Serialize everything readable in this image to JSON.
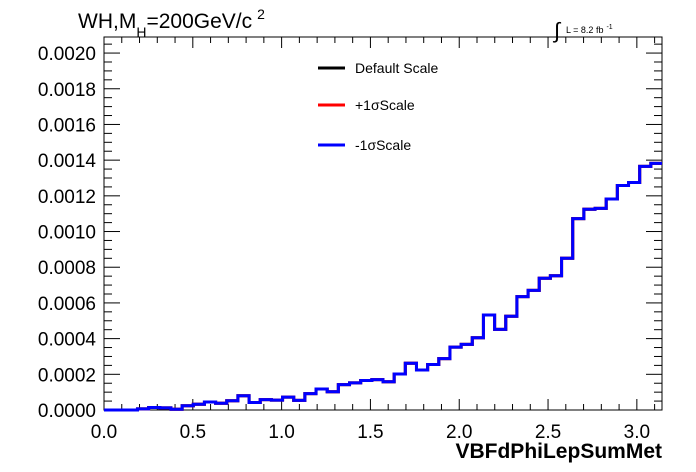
{
  "chart_data": {
    "type": "line",
    "title": "WH,M_H=200GeV/c^2",
    "title_parts": {
      "main": "WH,M",
      "subscript": "H",
      "rest": "=200GeV/c",
      "superscript": "2"
    },
    "annotation": {
      "integral_symbol": "∫",
      "text": "L = 8.2 fb",
      "superscript": "-1"
    },
    "xlabel": "VBFdPhiLepSumMet",
    "ylabel": "",
    "xlim": [
      0.0,
      3.1416
    ],
    "ylim": [
      0.0,
      0.00209
    ],
    "x_ticks": [
      "0.0",
      "0.5",
      "1.0",
      "1.5",
      "2.0",
      "2.5",
      "3.0"
    ],
    "y_ticks": [
      "0.0000",
      "0.0002",
      "0.0004",
      "0.0006",
      "0.0008",
      "0.0010",
      "0.0012",
      "0.0014",
      "0.0016",
      "0.0018",
      "0.0020"
    ],
    "grid": false,
    "legend_position": "top-center",
    "bin_edges": [
      0.0,
      0.0628,
      0.1257,
      0.1885,
      0.2513,
      0.3142,
      0.377,
      0.4398,
      0.5027,
      0.5655,
      0.6283,
      0.6912,
      0.754,
      0.8168,
      0.8796,
      0.9425,
      1.0053,
      1.0681,
      1.131,
      1.1938,
      1.2566,
      1.3195,
      1.3823,
      1.4451,
      1.508,
      1.5708,
      1.6336,
      1.6965,
      1.7593,
      1.8221,
      1.885,
      1.9478,
      2.0106,
      2.0735,
      2.1363,
      2.1991,
      2.2619,
      2.3248,
      2.3876,
      2.4504,
      2.5133,
      2.5761,
      2.6389,
      2.7018,
      2.7646,
      2.8274,
      2.8903,
      2.9531,
      3.0159,
      3.0788,
      3.1416
    ],
    "series": [
      {
        "name": "Default Scale",
        "color": "#000000",
        "values": [
          0.0,
          0.0,
          0.0,
          6e-06,
          1.4e-05,
          1.2e-05,
          4e-06,
          2.4e-05,
          3.2e-05,
          4.5e-05,
          3.8e-05,
          5.2e-05,
          8e-05,
          4.2e-05,
          5.8e-05,
          5.5e-05,
          7.2e-05,
          5.4e-05,
          9.2e-05,
          0.000118,
          0.000102,
          0.000142,
          0.000152,
          0.000165,
          0.00017,
          0.000158,
          0.000202,
          0.000262,
          0.000224,
          0.000255,
          0.000288,
          0.000352,
          0.000368,
          0.000405,
          0.000532,
          0.000452,
          0.000525,
          0.000635,
          0.00067,
          0.000738,
          0.000752,
          0.00085,
          0.001072,
          0.001125,
          0.00113,
          0.001182,
          0.001258,
          0.001275,
          0.001365,
          0.001382
        ]
      },
      {
        "name": "+1σScale",
        "color": "#ff0000",
        "values": [
          0.0,
          0.0,
          0.0,
          6e-06,
          1.4e-05,
          1.2e-05,
          4e-06,
          2.4e-05,
          3.2e-05,
          4.5e-05,
          3.8e-05,
          5.2e-05,
          8e-05,
          4.2e-05,
          5.8e-05,
          5.5e-05,
          7.2e-05,
          5.4e-05,
          9.2e-05,
          0.000118,
          0.000102,
          0.000142,
          0.000152,
          0.000165,
          0.00017,
          0.000158,
          0.000202,
          0.000262,
          0.000224,
          0.000255,
          0.000288,
          0.000352,
          0.000368,
          0.000405,
          0.000532,
          0.000452,
          0.000525,
          0.000635,
          0.00067,
          0.000738,
          0.000752,
          0.00085,
          0.001072,
          0.001125,
          0.00113,
          0.001182,
          0.001258,
          0.001275,
          0.001365,
          0.001382
        ]
      },
      {
        "name": "-1σScale",
        "color": "#0000ff",
        "values": [
          0.0,
          0.0,
          0.0,
          6e-06,
          1.4e-05,
          1.2e-05,
          4e-06,
          2.4e-05,
          3.2e-05,
          4.5e-05,
          3.8e-05,
          5.2e-05,
          8e-05,
          4.2e-05,
          5.8e-05,
          5.5e-05,
          7.2e-05,
          5.4e-05,
          9.2e-05,
          0.000118,
          0.000102,
          0.000142,
          0.000152,
          0.000165,
          0.00017,
          0.000158,
          0.000202,
          0.000262,
          0.000224,
          0.000255,
          0.000288,
          0.000352,
          0.000368,
          0.000405,
          0.000532,
          0.000452,
          0.000525,
          0.000635,
          0.00067,
          0.000738,
          0.000752,
          0.00085,
          0.001072,
          0.001125,
          0.00113,
          0.001182,
          0.001258,
          0.001275,
          0.001365,
          0.001382
        ]
      }
    ]
  }
}
